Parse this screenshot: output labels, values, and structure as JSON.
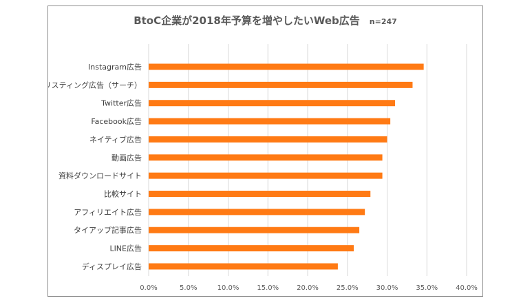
{
  "chart_data": {
    "type": "bar",
    "orientation": "horizontal",
    "title": "BtoC企業が2018年予算を増やしたいWeb広告",
    "subtitle": "n=247",
    "categories": [
      "Instagram広告",
      "リスティング広告（サーチ）",
      "Twitter広告",
      "Facebook広告",
      "ネイティブ広告",
      "動画広告",
      "資料ダウンロードサイト",
      "比較サイト",
      "アフィリエイト広告",
      "タイアップ記事広告",
      "LINE広告",
      "ディスプレイ広告"
    ],
    "series": [
      {
        "values": [
          0.346,
          0.332,
          0.31,
          0.304,
          0.3,
          0.294,
          0.294,
          0.279,
          0.272,
          0.265,
          0.258,
          0.238
        ]
      }
    ],
    "xlim": [
      0,
      0.4
    ],
    "xticks": [
      "0.0%",
      "5.0%",
      "10.0%",
      "15.0%",
      "20.0%",
      "25.0%",
      "30.0%",
      "35.0%",
      "40.0%"
    ],
    "grid": true,
    "legend": "none",
    "bar_color": "#FF7A14"
  }
}
